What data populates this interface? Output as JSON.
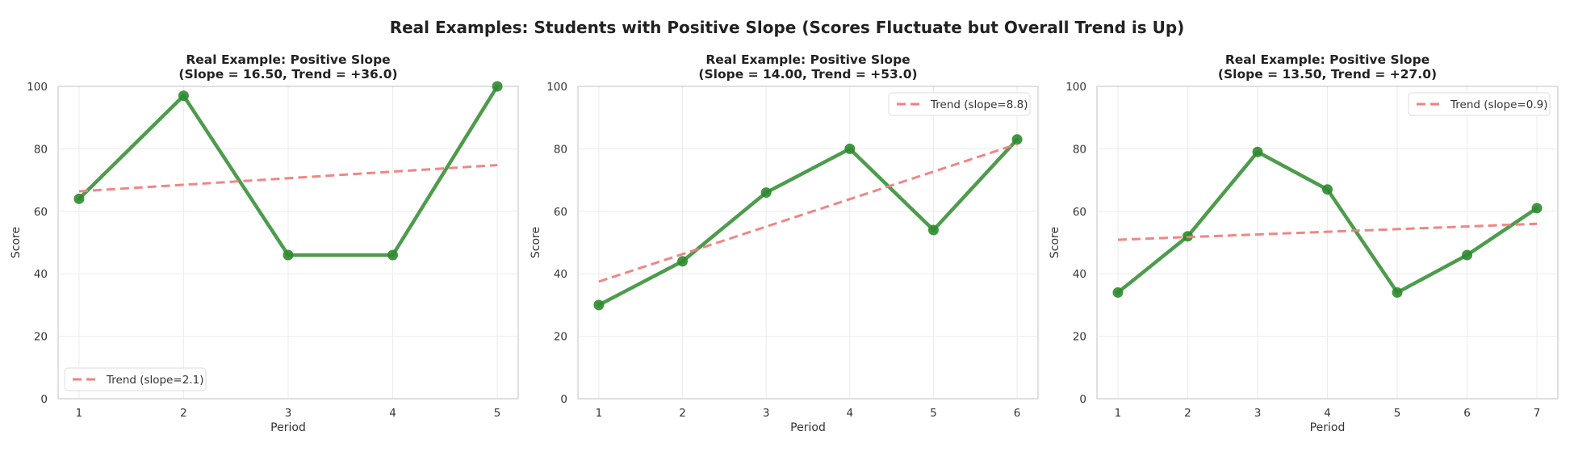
{
  "figure": {
    "suptitle": "Real Examples: Students with Positive Slope (Scores Fluctuate but Overall Trend is Up)"
  },
  "colors": {
    "score_line": "#2e8b2e",
    "trend_line": "#f08080",
    "grid": "#ebebeb",
    "spine": "#cccccc"
  },
  "chart_data": [
    {
      "type": "line",
      "title_line1": "Real Example: Positive Slope",
      "title_line2": "(Slope = 16.50, Trend = +36.0)",
      "xlabel": "Period",
      "ylabel": "Score",
      "x": [
        1,
        2,
        3,
        4,
        5
      ],
      "xticks": [
        "1",
        "2",
        "3",
        "4",
        "5"
      ],
      "yticks": [
        "0",
        "20",
        "40",
        "60",
        "80",
        "100"
      ],
      "xlim": [
        0.8,
        5.2
      ],
      "ylim": [
        0,
        100
      ],
      "grid": true,
      "series": [
        {
          "values": [
            64,
            97,
            46,
            46,
            100
          ],
          "style": "solid",
          "markers": true
        }
      ],
      "trend": {
        "name": "Trend (slope=2.1)",
        "start": 66.4,
        "end": 74.8
      },
      "legend_position": "lower-left"
    },
    {
      "type": "line",
      "title_line1": "Real Example: Positive Slope",
      "title_line2": "(Slope = 14.00, Trend = +53.0)",
      "xlabel": "Period",
      "ylabel": "Score",
      "x": [
        1,
        2,
        3,
        4,
        5,
        6
      ],
      "xticks": [
        "1",
        "2",
        "3",
        "4",
        "5",
        "6"
      ],
      "yticks": [
        "0",
        "20",
        "40",
        "60",
        "80",
        "100"
      ],
      "xlim": [
        0.75,
        6.25
      ],
      "ylim": [
        0,
        100
      ],
      "grid": true,
      "series": [
        {
          "values": [
            30,
            44,
            66,
            80,
            54,
            83
          ],
          "style": "solid",
          "markers": true
        }
      ],
      "trend": {
        "name": "Trend (slope=8.8)",
        "start": 37.5,
        "end": 81.5
      },
      "legend_position": "top-right"
    },
    {
      "type": "line",
      "title_line1": "Real Example: Positive Slope",
      "title_line2": "(Slope = 13.50, Trend = +27.0)",
      "xlabel": "Period",
      "ylabel": "Score",
      "x": [
        1,
        2,
        3,
        4,
        5,
        6,
        7
      ],
      "xticks": [
        "1",
        "2",
        "3",
        "4",
        "5",
        "6",
        "7"
      ],
      "yticks": [
        "0",
        "20",
        "40",
        "60",
        "80",
        "100"
      ],
      "xlim": [
        0.7,
        7.3
      ],
      "ylim": [
        0,
        100
      ],
      "grid": true,
      "series": [
        {
          "values": [
            34,
            52,
            79,
            67,
            34,
            46,
            61
          ],
          "style": "solid",
          "markers": true
        }
      ],
      "trend": {
        "name": "Trend (slope=0.9)",
        "start": 50.9,
        "end": 56.0
      },
      "legend_position": "top-right"
    }
  ]
}
